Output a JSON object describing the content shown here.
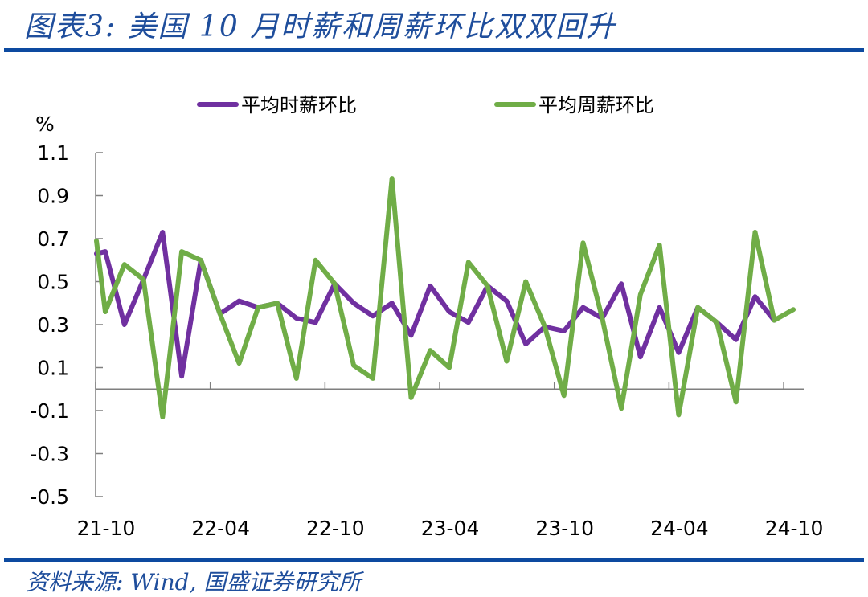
{
  "header": {
    "title": "图表3:  美国 10 月时薪和周薪环比双双回升"
  },
  "footer": {
    "source": "资料来源:  Wind, 国盛证券研究所"
  },
  "colors": {
    "hourly": "#7030a0",
    "weekly": "#70ad47",
    "accent": "#0d4aa0"
  },
  "chart_data": {
    "type": "line",
    "title": "美国 10 月时薪和周薪环比双双回升",
    "xlabel": "",
    "ylabel": "%",
    "ylim": [
      -0.5,
      1.1
    ],
    "yticks": [
      "1.1",
      "0.9",
      "0.7",
      "0.5",
      "0.3",
      "0.1",
      "-0.1",
      "-0.3",
      "-0.5"
    ],
    "xtick_labels": [
      "21-10",
      "22-04",
      "22-10",
      "23-04",
      "23-10",
      "24-04",
      "24-10"
    ],
    "legend_position": "top",
    "grid": false,
    "categories": [
      "21-10",
      "21-11",
      "21-12",
      "22-01",
      "22-02",
      "22-03",
      "22-04",
      "22-05",
      "22-06",
      "22-07",
      "22-08",
      "22-09",
      "22-10",
      "22-11",
      "22-12",
      "23-01",
      "23-02",
      "23-03",
      "23-04",
      "23-05",
      "23-06",
      "23-07",
      "23-08",
      "23-09",
      "23-10",
      "23-11",
      "23-12",
      "24-01",
      "24-02",
      "24-03",
      "24-04",
      "24-05",
      "24-06",
      "24-07",
      "24-08",
      "24-09",
      "24-10"
    ],
    "series": [
      {
        "name": "平均时薪环比",
        "color": "#7030a0",
        "values": [
          0.64,
          0.3,
          0.51,
          0.73,
          0.06,
          0.6,
          0.35,
          0.41,
          0.38,
          0.4,
          0.33,
          0.31,
          0.49,
          0.4,
          0.34,
          0.4,
          0.25,
          0.48,
          0.36,
          0.31,
          0.48,
          0.41,
          0.21,
          0.29,
          0.27,
          0.38,
          0.33,
          0.49,
          0.15,
          0.38,
          0.17,
          0.38,
          0.31,
          0.23,
          0.43,
          0.32,
          null
        ]
      },
      {
        "name": "平均周薪环比",
        "color": "#70ad47",
        "values": [
          0.36,
          0.58,
          0.51,
          -0.13,
          0.64,
          0.6,
          0.35,
          0.12,
          0.38,
          0.4,
          0.05,
          0.6,
          0.49,
          0.11,
          0.05,
          0.98,
          -0.04,
          0.18,
          0.1,
          0.59,
          0.48,
          0.13,
          0.5,
          0.29,
          -0.03,
          0.68,
          0.33,
          -0.09,
          0.44,
          0.67,
          -0.12,
          0.38,
          0.31,
          -0.06,
          0.73,
          0.32,
          0.37
        ]
      }
    ]
  }
}
